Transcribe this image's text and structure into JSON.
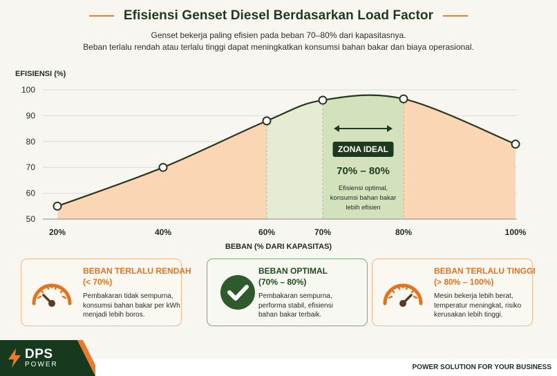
{
  "header": {
    "title": "Efisiensi Genset Diesel Berdasarkan Load Factor",
    "subtitle_line1": "Genset bekerja paling efisien pada beban 70–80% dari kapasitasnya.",
    "subtitle_line2": "Beban terlalu rendah atau terlalu tinggi dapat meningkatkan konsumsi bahan bakar dan biaya operasional."
  },
  "chart_data": {
    "type": "area",
    "ylabel": "EFISIENSI (%)",
    "xlabel": "BEBAN (% DARI KAPASITAS)",
    "ylim": [
      50,
      100
    ],
    "yticks": [
      50,
      60,
      70,
      80,
      90,
      100
    ],
    "x_tick_labels": [
      "20%",
      "40%",
      "60%",
      "70%",
      "80%",
      "100%"
    ],
    "x_tick_values": [
      20,
      40,
      60,
      70,
      80,
      100
    ],
    "xlim": [
      20,
      100
    ],
    "grid": "horizontal",
    "points": [
      {
        "x": 20,
        "y": 55
      },
      {
        "x": 40,
        "y": 70
      },
      {
        "x": 60,
        "y": 88
      },
      {
        "x": 70,
        "y": 96
      },
      {
        "x": 80,
        "y": 96.5
      },
      {
        "x": 100,
        "y": 79
      }
    ],
    "zones": [
      {
        "from": 20,
        "to": 60,
        "color": "#fbd6b5"
      },
      {
        "from": 60,
        "to": 70,
        "color": "#e6ebd3"
      },
      {
        "from": 70,
        "to": 80,
        "color": "#d3e2bd"
      },
      {
        "from": 80,
        "to": 100,
        "color": "#fbd6b5"
      }
    ],
    "annotation": {
      "badge": "ZONA IDEAL",
      "range": "70% – 80%",
      "note_line1": "Efisiensi optimal,",
      "note_line2": "konsumsi bahan bakar",
      "note_line3": "lebih efisien"
    }
  },
  "cards": [
    {
      "title": "BEBAN TERLALU RENDAH",
      "sub": "(< 70%)",
      "desc": [
        "Pembakaran tidak sempurna,",
        "konsumsi bahan bakar per kWh",
        "menjadi lebih boros."
      ],
      "icon": "gauge-low-icon"
    },
    {
      "title": "BEBAN OPTIMAL",
      "sub": "(70% – 80%)",
      "desc": [
        "Pembakaran sempurna,",
        "performa stabil, efisiensi",
        "bahan bakar terbaik."
      ],
      "icon": "check-circle-icon"
    },
    {
      "title": "BEBAN TERLALU TINGGI",
      "sub": "(> 80% – 100%)",
      "desc": [
        "Mesin bekerja lebih berat,",
        "temperatur meningkat, risiko",
        "kerusakan lebih tinggi."
      ],
      "icon": "gauge-high-icon"
    }
  ],
  "footer": {
    "logo_name": "DPS",
    "logo_sub": "POWER",
    "tagline": "POWER SOLUTION FOR YOUR BUSINESS"
  },
  "colors": {
    "orange": "#ec7a2c",
    "dark_green": "#1e4a1e",
    "line": "#26361f"
  }
}
